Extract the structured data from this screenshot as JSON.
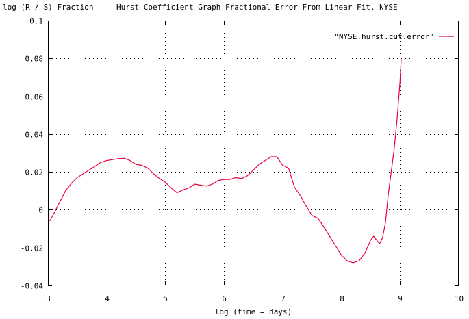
{
  "chart_data": {
    "type": "line",
    "ylabel": "log (R / S) Fraction",
    "title": "Hurst Coefficient Graph Fractional Error From Linear Fit, NYSE",
    "xlabel": "log (time = days)",
    "xlim": [
      3,
      10
    ],
    "ylim": [
      -0.04,
      0.1
    ],
    "x_ticks": [
      3,
      4,
      5,
      6,
      7,
      8,
      9,
      10
    ],
    "x_tick_labels": [
      "3",
      "4",
      "5",
      "6",
      "7",
      "8",
      "9",
      "10"
    ],
    "y_ticks": [
      -0.04,
      -0.02,
      0,
      0.02,
      0.04,
      0.06,
      0.08,
      0.1
    ],
    "y_tick_labels": [
      "-0.04",
      "-0.02",
      "0",
      "0.02",
      "0.04",
      "0.06",
      "0.08",
      "0.1"
    ],
    "grid": true,
    "legend_position": "top-right",
    "series": [
      {
        "name": "\"NYSE.hurst.cut.error\"",
        "color": "#e8003a",
        "x": [
          3.03,
          3.1,
          3.2,
          3.3,
          3.4,
          3.5,
          3.6,
          3.7,
          3.8,
          3.9,
          4.0,
          4.1,
          4.2,
          4.3,
          4.4,
          4.5,
          4.6,
          4.7,
          4.8,
          4.9,
          5.0,
          5.1,
          5.2,
          5.3,
          5.4,
          5.5,
          5.6,
          5.7,
          5.8,
          5.9,
          6.0,
          6.1,
          6.2,
          6.3,
          6.4,
          6.5,
          6.6,
          6.7,
          6.8,
          6.9,
          7.0,
          7.1,
          7.2,
          7.3,
          7.4,
          7.5,
          7.6,
          7.7,
          7.8,
          7.9,
          8.0,
          8.1,
          8.2,
          8.3,
          8.4,
          8.5,
          8.55,
          8.6,
          8.65,
          8.7,
          8.75,
          8.8,
          8.85,
          8.9,
          8.95,
          9.0,
          9.02
        ],
        "y": [
          -0.006,
          -0.002,
          0.004,
          0.01,
          0.014,
          0.017,
          0.019,
          0.021,
          0.023,
          0.025,
          0.026,
          0.0265,
          0.027,
          0.0272,
          0.026,
          0.024,
          0.0235,
          0.022,
          0.019,
          0.0165,
          0.0145,
          0.0115,
          0.009,
          0.0105,
          0.0115,
          0.0135,
          0.013,
          0.0125,
          0.0135,
          0.0155,
          0.016,
          0.016,
          0.017,
          0.0165,
          0.018,
          0.021,
          0.024,
          0.026,
          0.028,
          0.028,
          0.0235,
          0.022,
          0.012,
          0.0075,
          0.002,
          -0.003,
          -0.0045,
          -0.009,
          -0.014,
          -0.019,
          -0.024,
          -0.027,
          -0.028,
          -0.027,
          -0.023,
          -0.016,
          -0.014,
          -0.016,
          -0.018,
          -0.015,
          -0.007,
          0.008,
          0.02,
          0.032,
          0.048,
          0.068,
          0.08
        ]
      }
    ]
  }
}
